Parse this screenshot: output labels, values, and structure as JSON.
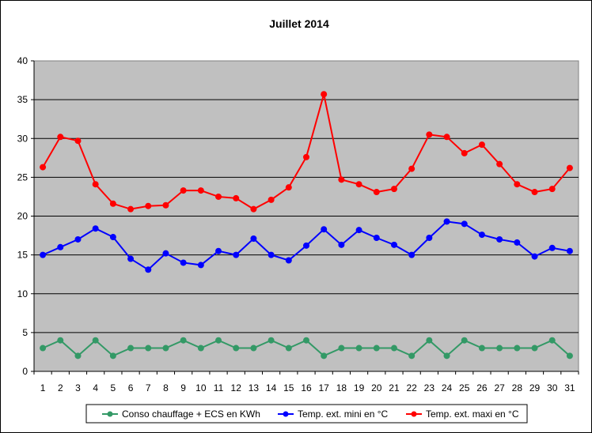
{
  "chart_data": {
    "type": "line",
    "title": "Juillet 2014",
    "xlabel": "",
    "ylabel": "",
    "categories": [
      "1",
      "2",
      "3",
      "4",
      "5",
      "6",
      "7",
      "8",
      "9",
      "10",
      "11",
      "12",
      "13",
      "14",
      "15",
      "16",
      "17",
      "18",
      "19",
      "20",
      "21",
      "22",
      "23",
      "24",
      "25",
      "26",
      "27",
      "28",
      "29",
      "30",
      "31"
    ],
    "ylim": [
      0,
      40
    ],
    "yticks": [
      0,
      5,
      10,
      15,
      20,
      25,
      30,
      35,
      40
    ],
    "grid": true,
    "legend_position": "bottom",
    "plot_background": "#c0c0c0",
    "series": [
      {
        "name": "Conso chauffage + ECS en KWh",
        "color": "#339966",
        "values": [
          3,
          4,
          2,
          4,
          2,
          3,
          3,
          3,
          4,
          3,
          4,
          3,
          3,
          4,
          3,
          4,
          2,
          3,
          3,
          3,
          3,
          2,
          4,
          2,
          4,
          3,
          3,
          3,
          3,
          4,
          2
        ]
      },
      {
        "name": "Temp. ext. mini en °C",
        "color": "#0000ff",
        "values": [
          15,
          16,
          17,
          18.4,
          17.3,
          14.5,
          13.1,
          15.2,
          14,
          13.7,
          15.5,
          15,
          17.1,
          15,
          14.3,
          16.2,
          18.3,
          16.3,
          18.2,
          17.2,
          16.3,
          15,
          17.2,
          19.3,
          19,
          17.6,
          17,
          16.6,
          14.8,
          15.9,
          15.5
        ]
      },
      {
        "name": "Temp. ext. maxi en °C",
        "color": "#ff0000",
        "values": [
          26.3,
          30.2,
          29.7,
          24.1,
          21.6,
          20.9,
          21.3,
          21.4,
          23.3,
          23.3,
          22.5,
          22.3,
          20.9,
          22.1,
          23.7,
          27.6,
          35.7,
          24.7,
          24.1,
          23.1,
          23.5,
          26.1,
          30.5,
          30.2,
          28.1,
          29.2,
          26.7,
          24.1,
          23.1,
          23.5,
          26.2
        ]
      }
    ]
  }
}
